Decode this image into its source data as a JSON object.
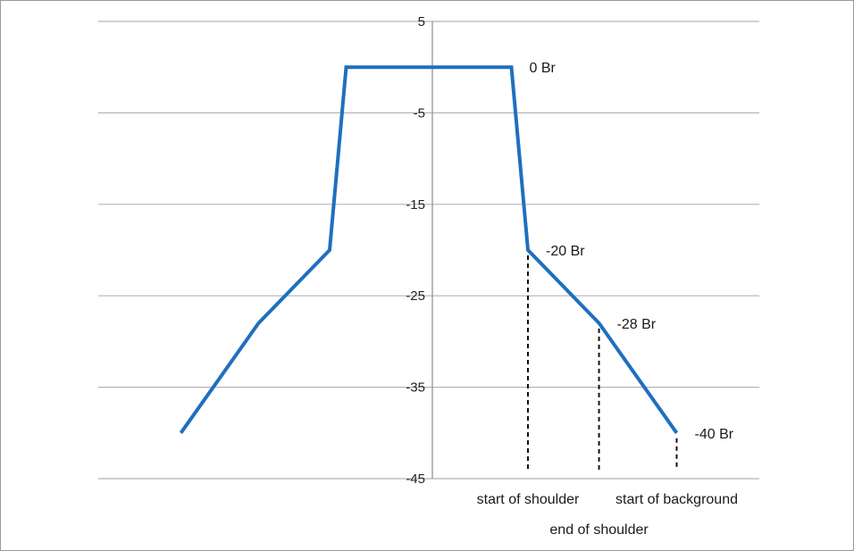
{
  "chart_data": {
    "type": "line",
    "title": "",
    "xlabel": "",
    "ylabel": "",
    "ylim": [
      -45,
      5
    ],
    "yticks": [
      5,
      -5,
      -15,
      -25,
      -35,
      -45
    ],
    "grid": true,
    "legend": "none",
    "series": [
      {
        "color": "#1f6fbf",
        "x": [
          -1.0,
          -0.53,
          -0.1,
          0.0,
          1.0,
          1.1,
          1.53,
          2.0
        ],
        "y": [
          -40,
          -28,
          -20,
          0,
          0,
          -20,
          -28,
          -40
        ]
      }
    ],
    "xrange": [
      -1.5,
      2.5
    ],
    "point_labels": [
      {
        "text": "0 Br",
        "x": 1.0,
        "y": 0
      },
      {
        "text": "-20 Br",
        "x": 1.1,
        "y": -20
      },
      {
        "text": "-28 Br",
        "x": 1.53,
        "y": -28
      },
      {
        "text": "-40 Br",
        "x": 2.0,
        "y": -40
      }
    ],
    "markers": [
      {
        "x": 1.1,
        "y_top": -20,
        "label": "start of shoulder",
        "row": 1
      },
      {
        "x": 1.53,
        "y_top": -28,
        "label": "end of shoulder",
        "row": 2
      },
      {
        "x": 2.0,
        "y_top": -40,
        "label": "start of background",
        "row": 1
      }
    ]
  }
}
